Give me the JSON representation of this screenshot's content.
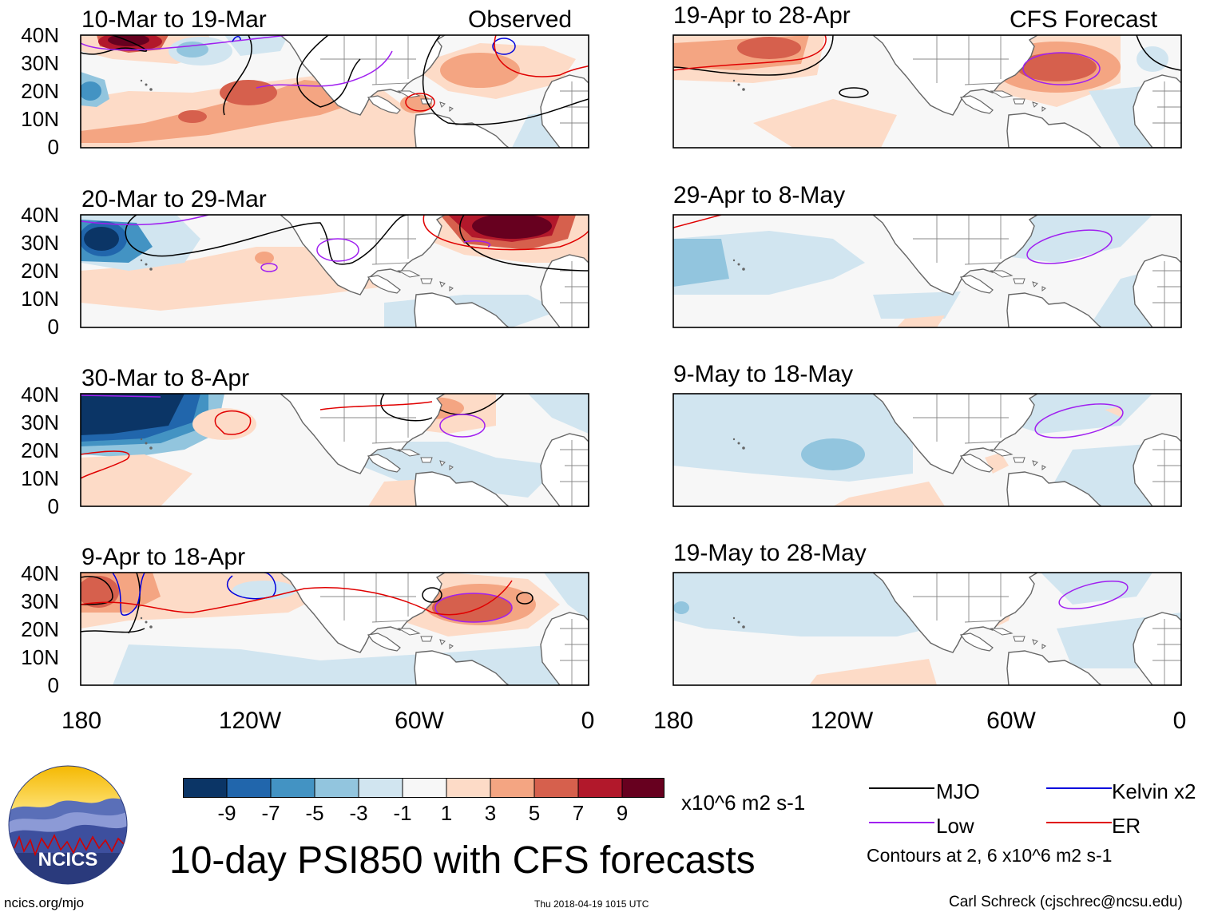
{
  "header": {
    "observed_label": "Observed",
    "forecast_label": "CFS Forecast"
  },
  "panels": {
    "observed": [
      {
        "period": "10-Mar to 19-Mar"
      },
      {
        "period": "20-Mar to 29-Mar"
      },
      {
        "period": "30-Mar to 8-Apr"
      },
      {
        "period": "9-Apr to 18-Apr"
      }
    ],
    "forecast": [
      {
        "period": "19-Apr to 28-Apr"
      },
      {
        "period": "29-Apr to 8-May"
      },
      {
        "period": "9-May to 18-May"
      },
      {
        "period": "19-May to 28-May"
      }
    ]
  },
  "axes": {
    "lat_labels": [
      "40N",
      "30N",
      "20N",
      "10N",
      "0"
    ],
    "lon_labels": [
      "180",
      "120W",
      "60W",
      "0"
    ]
  },
  "colorbar": {
    "tick_labels": [
      "-9",
      "-7",
      "-5",
      "-3",
      "-1",
      "1",
      "3",
      "5",
      "7",
      "9"
    ],
    "units": "x10^6 m2 s-1",
    "colors": [
      "#0b3566",
      "#2166ac",
      "#4393c3",
      "#92c5de",
      "#d1e5f0",
      "#f7f7f7",
      "#fddbc7",
      "#f4a582",
      "#d6604d",
      "#b2182b",
      "#67001f"
    ]
  },
  "legend": {
    "items": [
      {
        "label": "MJO",
        "color": "#000000"
      },
      {
        "label": "Kelvin x2",
        "color": "#0000dd"
      },
      {
        "label": "Low",
        "color": "#a020f0"
      },
      {
        "label": "ER",
        "color": "#e00000"
      }
    ],
    "contour_note": "Contours at 2, 6 x10^6 m2 s-1"
  },
  "footer": {
    "title": "10-day PSI850 with CFS forecasts",
    "website": "ncics.org/mjo",
    "timestamp": "Thu 2018-04-19 1015 UTC",
    "author": "Carl Schreck (cjschrec@ncsu.edu)",
    "logo_text": "NCICS"
  }
}
